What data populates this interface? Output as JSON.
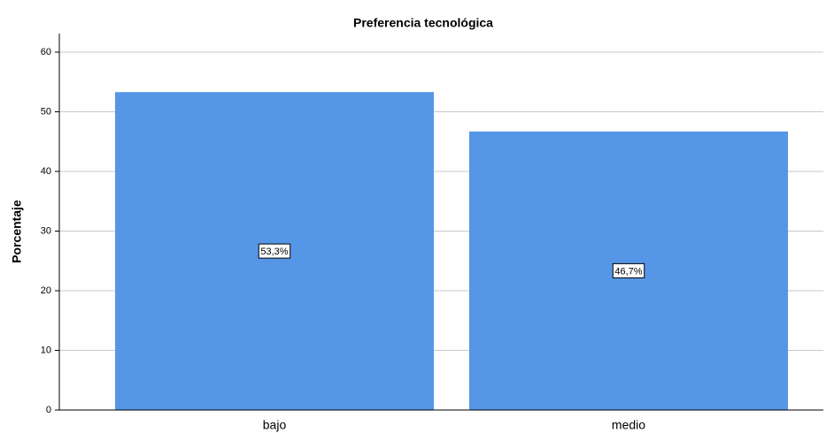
{
  "chart_data": {
    "type": "bar",
    "title": "Preferencia tecnológica",
    "ylabel": "Porcentaje",
    "categories": [
      "bajo",
      "medio"
    ],
    "values": [
      53.3,
      46.7
    ],
    "value_labels": [
      "53,3%",
      "46,7%"
    ],
    "color": "#5596e6",
    "ylim": [
      0,
      60
    ],
    "yticks": [
      0,
      10,
      20,
      30,
      40,
      50,
      60
    ],
    "grid": true
  }
}
